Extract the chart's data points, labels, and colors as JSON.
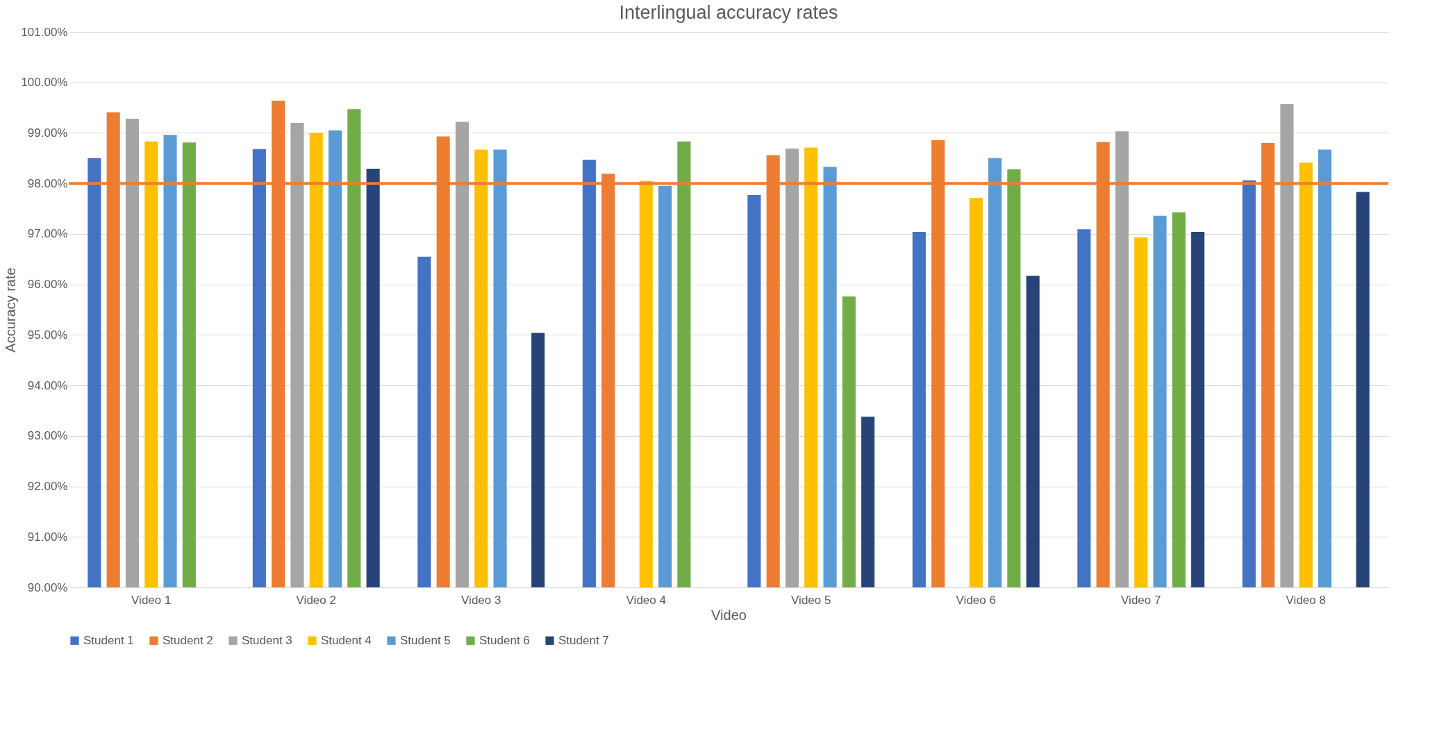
{
  "chart_data": {
    "type": "bar",
    "title": "Interlingual accuracy rates",
    "xlabel": "Video",
    "ylabel": "Accuracy rate",
    "categories": [
      "Video 1",
      "Video 2",
      "Video 3",
      "Video 4",
      "Video 5",
      "Video 6",
      "Video 7",
      "Video 8"
    ],
    "series": [
      {
        "name": "Student 1",
        "color": "#4472c4",
        "values": [
          98.5,
          98.68,
          96.55,
          98.47,
          97.77,
          97.04,
          97.09,
          98.06
        ]
      },
      {
        "name": "Student 2",
        "color": "#ed7d31",
        "values": [
          99.41,
          99.64,
          98.93,
          98.19,
          98.56,
          98.86,
          98.82,
          98.8
        ]
      },
      {
        "name": "Student 3",
        "color": "#a5a5a5",
        "values": [
          99.28,
          99.2,
          99.22,
          null,
          98.69,
          null,
          99.03,
          99.57
        ]
      },
      {
        "name": "Student 4",
        "color": "#ffc000",
        "values": [
          98.83,
          99.0,
          98.67,
          98.05,
          98.71,
          97.71,
          96.93,
          98.41
        ]
      },
      {
        "name": "Student 5",
        "color": "#5b9bd5",
        "values": [
          98.96,
          99.05,
          98.67,
          97.95,
          98.33,
          98.5,
          97.36,
          98.67
        ]
      },
      {
        "name": "Student 6",
        "color": "#70ad47",
        "values": [
          98.81,
          99.47,
          null,
          98.83,
          95.76,
          98.28,
          97.43,
          null
        ]
      },
      {
        "name": "Student 7",
        "color": "#264478",
        "values": [
          null,
          98.29,
          95.04,
          null,
          93.38,
          96.17,
          97.04,
          97.83
        ]
      }
    ],
    "ylim": [
      90,
      101
    ],
    "yticks": [
      {
        "value": 90,
        "label": "90.00%"
      },
      {
        "value": 91,
        "label": "91.00%"
      },
      {
        "value": 92,
        "label": "92.00%"
      },
      {
        "value": 93,
        "label": "93.00%"
      },
      {
        "value": 94,
        "label": "94.00%"
      },
      {
        "value": 95,
        "label": "95.00%"
      },
      {
        "value": 96,
        "label": "96.00%"
      },
      {
        "value": 97,
        "label": "97.00%"
      },
      {
        "value": 98,
        "label": "98.00%"
      },
      {
        "value": 99,
        "label": "99.00%"
      },
      {
        "value": 100,
        "label": "100.00%"
      },
      {
        "value": 101,
        "label": "101.00%"
      }
    ],
    "ref_lines": [
      {
        "axis": "y",
        "value": 98,
        "label": null,
        "color": "#ed7d31"
      }
    ],
    "grid": "y",
    "legend": "bottom"
  }
}
